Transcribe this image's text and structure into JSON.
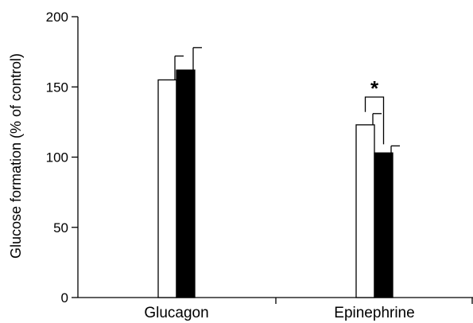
{
  "chart_data": {
    "type": "bar",
    "categories": [
      "Glucagon",
      "Epinephrine"
    ],
    "series": [
      {
        "values": [
          155,
          123
        ],
        "errors": [
          17,
          8
        ],
        "fill": "#ffffff"
      },
      {
        "values": [
          162,
          103
        ],
        "errors": [
          16,
          5
        ],
        "fill": "#000000"
      }
    ],
    "ylabel": "Glucose formation (% of control)",
    "ylim": [
      0,
      200
    ],
    "yticks": [
      0,
      50,
      100,
      150,
      200
    ],
    "grid": false,
    "annotations": [
      {
        "text": "*",
        "category": "Epinephrine",
        "between_series": [
          0,
          1
        ]
      }
    ]
  }
}
